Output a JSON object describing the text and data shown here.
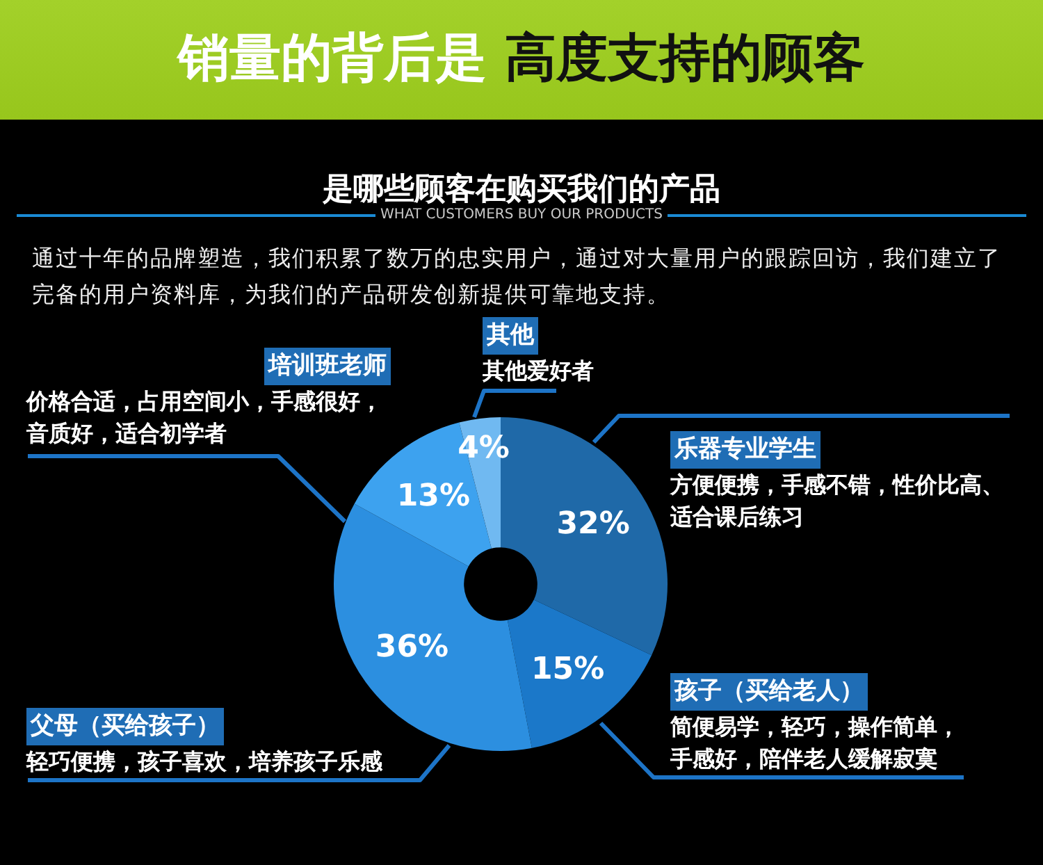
{
  "chart_data": {
    "type": "donut",
    "title": "销量的背后是 高度支持的顾客",
    "subtitle": "是哪些顾客在购买我们的产品",
    "categories": [
      "乐器专业学生",
      "孩子（买给老人）",
      "父母（买给孩子）",
      "培训班老师",
      "其他"
    ],
    "values": [
      32,
      15,
      36,
      13,
      4
    ],
    "colors": [
      "#1f69a8",
      "#1b78c9",
      "#2c8fe0",
      "#3da2ef",
      "#70b9f1"
    ],
    "value_labels": [
      "32%",
      "15%",
      "36%",
      "13%",
      "4%"
    ],
    "annotations": [
      "WHAT CUSTOMERS BUY OUR PRODUCTS",
      "通过十年的品牌塑造，我们积累了数万的忠实用户，通过对大量用户的跟踪回访，我们建立了完备的用户资料库，为我们的产品研发创新提供可靠地支持。",
      "方便便携，手感不错，性价比高、适合课后练习",
      "简便易学，轻巧，操作简单，手感好，陪伴老人缓解寂寞",
      "轻巧便携，孩子喜欢，培养孩子乐感",
      "价格合适，占用空间小，手感很好，音质好，适合初学者",
      "其他爱好者"
    ]
  }
}
